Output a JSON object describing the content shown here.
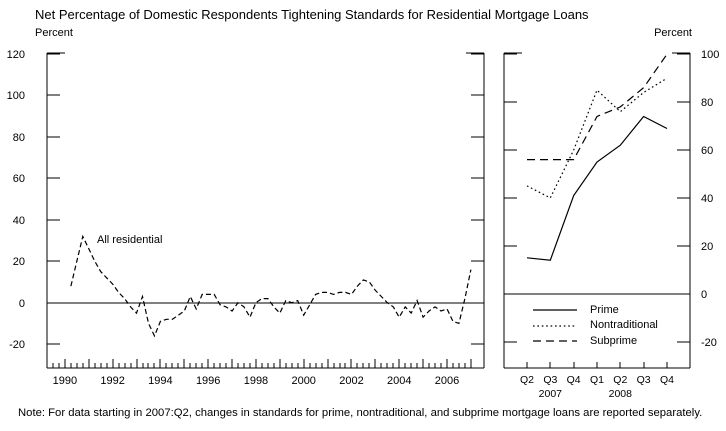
{
  "title": "Net Percentage of Domestic Respondents Tightening Standards for Residential Mortgage Loans",
  "note": "Note: For data starting in 2007:Q2, changes in standards for prime, nontraditional, and subprime mortgage loans are reported separately.",
  "left_panel": {
    "unit_label": "Percent"
  },
  "right_panel": {
    "unit_label": "Percent"
  },
  "colors": {
    "line": "#000000",
    "text": "#000000",
    "background": "#ffffff"
  },
  "chart_data": [
    {
      "type": "line",
      "panel": "left",
      "annotation": "All residential",
      "ylabel": "Percent",
      "ylim": [
        -31.5,
        120.5
      ],
      "y_ticks": [
        120,
        100,
        80,
        60,
        40,
        20,
        0,
        -20
      ],
      "xlim": [
        1989.25,
        2007.55
      ],
      "x_tick_years": [
        1990,
        1991,
        1992,
        1993,
        1994,
        1995,
        1996,
        1997,
        1998,
        1999,
        2000,
        2001,
        2002,
        2003,
        2004,
        2005,
        2006,
        2007
      ],
      "x_tick_years_labeled": [
        "1990",
        "1992",
        "1994",
        "1996",
        "1998",
        "2000",
        "2002",
        "2004",
        "2006"
      ],
      "minor_tick_quarters": true,
      "zero_line": true,
      "grid": false,
      "series": [
        {
          "name": "All residential",
          "style": "short-dashed",
          "x_start": 1990.25,
          "x_step": 0.25,
          "values": [
            8,
            20,
            32,
            26,
            20,
            15,
            12,
            9,
            5,
            2,
            -2,
            -5,
            3,
            -10,
            -16,
            -9,
            -8,
            -8,
            -6,
            -4,
            3,
            -3,
            4,
            4,
            4,
            -1,
            -2,
            -4,
            0,
            -2,
            -7,
            0,
            2,
            2,
            -2,
            -5,
            1,
            0,
            1,
            -6,
            -1,
            4,
            5,
            5,
            4,
            5,
            5,
            4,
            8,
            11,
            10,
            6,
            3,
            0,
            -2,
            -7,
            -2,
            -5,
            1,
            -7,
            -4,
            -2,
            -4,
            -3,
            -9,
            -10,
            2,
            16
          ]
        }
      ]
    },
    {
      "type": "line",
      "panel": "right",
      "ylabel": "Percent",
      "ylim": [
        -31,
        100.5
      ],
      "y_ticks": [
        100,
        80,
        60,
        40,
        20,
        0,
        -20
      ],
      "categories": [
        "Q2",
        "Q3",
        "Q4",
        "Q1",
        "Q2",
        "Q3",
        "Q4"
      ],
      "year_labels": [
        {
          "text": "2007",
          "index": 1
        },
        {
          "text": "2008",
          "index": 4
        }
      ],
      "zero_line": true,
      "grid": false,
      "legend_position": "inside-bottom",
      "series": [
        {
          "name": "Prime",
          "style": "solid",
          "values": [
            15,
            14,
            41,
            55,
            62,
            74,
            69
          ]
        },
        {
          "name": "Nontraditional",
          "style": "dotted",
          "values": [
            45,
            40,
            60,
            85,
            76,
            84,
            90
          ]
        },
        {
          "name": "Subprime",
          "style": "dashed",
          "values": [
            56,
            56,
            56,
            74,
            78,
            86,
            100
          ]
        }
      ]
    }
  ]
}
